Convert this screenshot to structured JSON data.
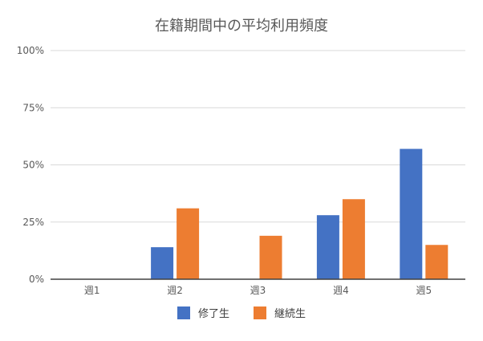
{
  "chart_data": {
    "type": "bar",
    "title": "在籍期間中の平均利用頻度",
    "xlabel": "",
    "ylabel": "",
    "categories": [
      "週1",
      "週2",
      "週3",
      "週4",
      "週5"
    ],
    "y_ticks": [
      "0%",
      "25%",
      "50%",
      "75%",
      "100%"
    ],
    "ylim": [
      0,
      100
    ],
    "grid": true,
    "legend_position": "bottom",
    "series": [
      {
        "name": "修了生",
        "color": "#4472C4",
        "values": [
          0,
          14,
          0,
          28,
          57
        ]
      },
      {
        "name": "継続生",
        "color": "#ED7D31",
        "values": [
          0,
          31,
          19,
          35,
          15
        ]
      }
    ]
  }
}
